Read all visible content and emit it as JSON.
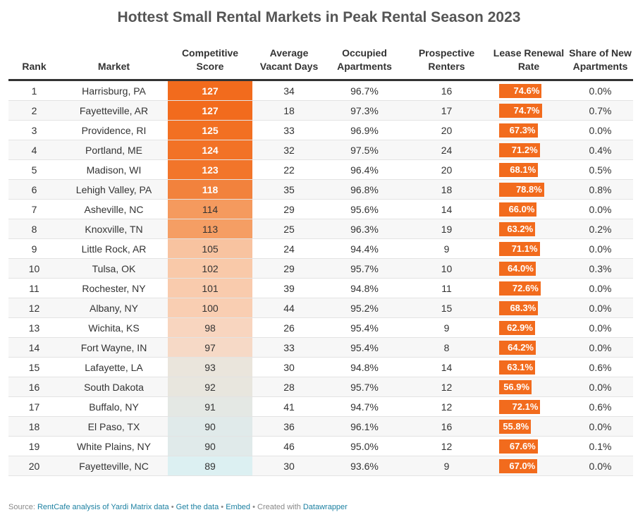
{
  "title": "Hottest Small Rental Markets in Peak Rental Season 2023",
  "columns": [
    "Rank",
    "Market",
    "Competitive Score",
    "Average Vacant Days",
    "Occupied Apartments",
    "Prospective Renters",
    "Lease Renewal Rate",
    "Share of New Apartments"
  ],
  "colors": {
    "bar": "#f26b1d"
  },
  "rows": [
    {
      "rank": "1",
      "market": "Harrisburg, PA",
      "score": "127",
      "score_value": 127,
      "score_color": "#f26b1d",
      "vacant": "34",
      "occupied": "96.7%",
      "renters": "16",
      "lease": "74.6%",
      "lease_value": 74.6,
      "share": "0.0%"
    },
    {
      "rank": "2",
      "market": "Fayetteville, AR",
      "score": "127",
      "score_value": 127,
      "score_color": "#f26b1d",
      "vacant": "18",
      "occupied": "97.3%",
      "renters": "17",
      "lease": "74.7%",
      "lease_value": 74.7,
      "share": "0.7%"
    },
    {
      "rank": "3",
      "market": "Providence, RI",
      "score": "125",
      "score_value": 125,
      "score_color": "#f27022",
      "vacant": "33",
      "occupied": "96.9%",
      "renters": "20",
      "lease": "67.3%",
      "lease_value": 67.3,
      "share": "0.0%"
    },
    {
      "rank": "4",
      "market": "Portland, ME",
      "score": "124",
      "score_value": 124,
      "score_color": "#f27226",
      "vacant": "32",
      "occupied": "97.5%",
      "renters": "24",
      "lease": "71.2%",
      "lease_value": 71.2,
      "share": "0.4%"
    },
    {
      "rank": "5",
      "market": "Madison, WI",
      "score": "123",
      "score_value": 123,
      "score_color": "#f2752a",
      "vacant": "22",
      "occupied": "96.4%",
      "renters": "20",
      "lease": "68.1%",
      "lease_value": 68.1,
      "share": "0.5%"
    },
    {
      "rank": "6",
      "market": "Lehigh Valley, PA",
      "score": "118",
      "score_value": 118,
      "score_color": "#f2823d",
      "vacant": "35",
      "occupied": "96.8%",
      "renters": "18",
      "lease": "78.8%",
      "lease_value": 78.8,
      "share": "0.8%"
    },
    {
      "rank": "7",
      "market": "Asheville, NC",
      "score": "114",
      "score_value": 114,
      "score_color": "#f59a5e",
      "vacant": "29",
      "occupied": "95.6%",
      "renters": "14",
      "lease": "66.0%",
      "lease_value": 66.0,
      "share": "0.0%"
    },
    {
      "rank": "8",
      "market": "Knoxville, TN",
      "score": "113",
      "score_value": 113,
      "score_color": "#f59e64",
      "vacant": "25",
      "occupied": "96.3%",
      "renters": "19",
      "lease": "63.2%",
      "lease_value": 63.2,
      "share": "0.2%"
    },
    {
      "rank": "9",
      "market": "Little Rock, AR",
      "score": "105",
      "score_value": 105,
      "score_color": "#f8c3a0",
      "vacant": "24",
      "occupied": "94.4%",
      "renters": "9",
      "lease": "71.1%",
      "lease_value": 71.1,
      "share": "0.0%"
    },
    {
      "rank": "10",
      "market": "Tulsa, OK",
      "score": "102",
      "score_value": 102,
      "score_color": "#f9c9a9",
      "vacant": "29",
      "occupied": "95.7%",
      "renters": "10",
      "lease": "64.0%",
      "lease_value": 64.0,
      "share": "0.3%"
    },
    {
      "rank": "11",
      "market": "Rochester, NY",
      "score": "101",
      "score_value": 101,
      "score_color": "#f9cbad",
      "vacant": "39",
      "occupied": "94.8%",
      "renters": "11",
      "lease": "72.6%",
      "lease_value": 72.6,
      "share": "0.0%"
    },
    {
      "rank": "12",
      "market": "Albany, NY",
      "score": "100",
      "score_value": 100,
      "score_color": "#f9ceb2",
      "vacant": "44",
      "occupied": "95.2%",
      "renters": "15",
      "lease": "68.3%",
      "lease_value": 68.3,
      "share": "0.0%"
    },
    {
      "rank": "13",
      "market": "Wichita, KS",
      "score": "98",
      "score_value": 98,
      "score_color": "#f8d5bf",
      "vacant": "26",
      "occupied": "95.4%",
      "renters": "9",
      "lease": "62.9%",
      "lease_value": 62.9,
      "share": "0.0%"
    },
    {
      "rank": "14",
      "market": "Fort Wayne, IN",
      "score": "97",
      "score_value": 97,
      "score_color": "#f6d9c6",
      "vacant": "33",
      "occupied": "95.4%",
      "renters": "8",
      "lease": "64.2%",
      "lease_value": 64.2,
      "share": "0.0%"
    },
    {
      "rank": "15",
      "market": "Lafayette, LA",
      "score": "93",
      "score_value": 93,
      "score_color": "#eae5dc",
      "vacant": "30",
      "occupied": "94.8%",
      "renters": "14",
      "lease": "63.1%",
      "lease_value": 63.1,
      "share": "0.6%"
    },
    {
      "rank": "16",
      "market": "South Dakota",
      "score": "92",
      "score_value": 92,
      "score_color": "#e8e6de",
      "vacant": "28",
      "occupied": "95.7%",
      "renters": "12",
      "lease": "56.9%",
      "lease_value": 56.9,
      "share": "0.0%"
    },
    {
      "rank": "17",
      "market": "Buffalo, NY",
      "score": "91",
      "score_value": 91,
      "score_color": "#e4e8e4",
      "vacant": "41",
      "occupied": "94.7%",
      "renters": "12",
      "lease": "72.1%",
      "lease_value": 72.1,
      "share": "0.6%"
    },
    {
      "rank": "18",
      "market": "El Paso, TX",
      "score": "90",
      "score_value": 90,
      "score_color": "#e0eaea",
      "vacant": "36",
      "occupied": "96.1%",
      "renters": "16",
      "lease": "55.8%",
      "lease_value": 55.8,
      "share": "0.0%"
    },
    {
      "rank": "19",
      "market": "White Plains, NY",
      "score": "90",
      "score_value": 90,
      "score_color": "#e0eaea",
      "vacant": "46",
      "occupied": "95.0%",
      "renters": "12",
      "lease": "67.6%",
      "lease_value": 67.6,
      "share": "0.1%"
    },
    {
      "rank": "20",
      "market": "Fayetteville, NC",
      "score": "89",
      "score_value": 89,
      "score_color": "#dcf0f2",
      "vacant": "30",
      "occupied": "93.6%",
      "renters": "9",
      "lease": "67.0%",
      "lease_value": 67.0,
      "share": "0.0%"
    }
  ],
  "footer": {
    "source_label": "Source:",
    "source_link": "RentCafe analysis of Yardi Matrix data",
    "sep": "•",
    "get_data": "Get the data",
    "embed": "Embed",
    "created": "Created with",
    "datawrapper": "Datawrapper"
  }
}
